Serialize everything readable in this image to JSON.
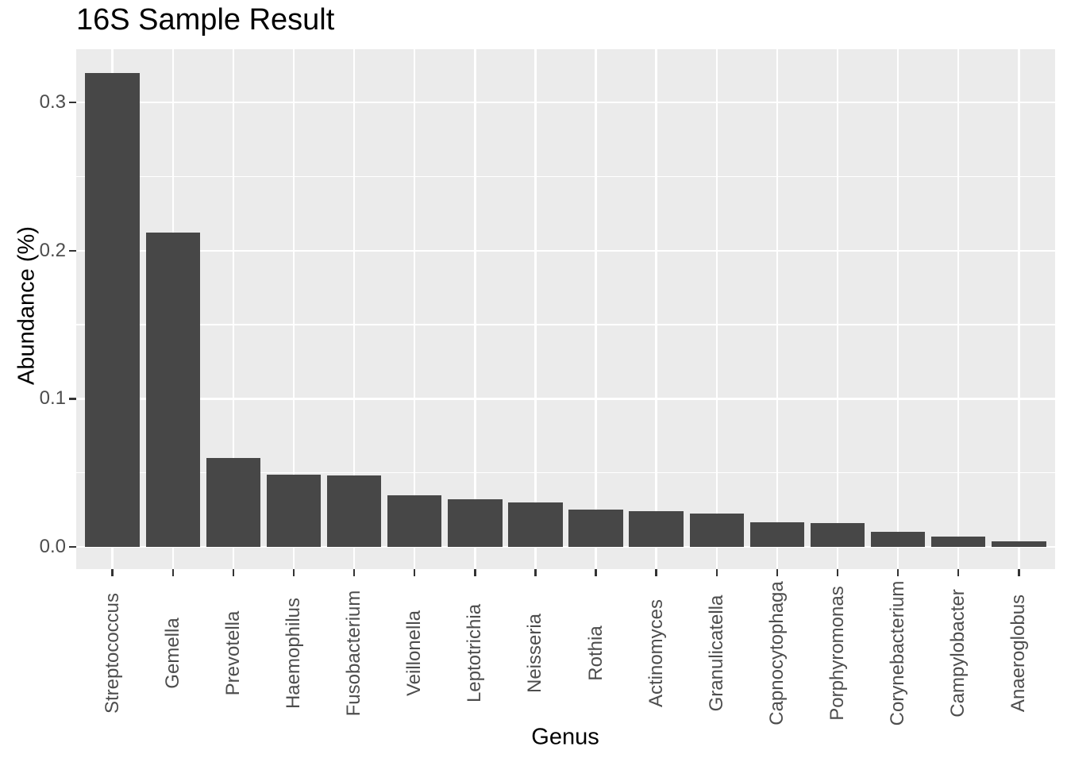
{
  "chart": {
    "title": "16S Sample Result",
    "x_axis_title": "Genus",
    "y_axis_title": "Abundance (%)"
  },
  "chart_data": {
    "type": "bar",
    "title": "16S Sample Result",
    "xlabel": "Genus",
    "ylabel": "Abundance (%)",
    "categories": [
      "Streptococcus",
      "Gemella",
      "Prevotella",
      "Haemophilus",
      "Fusobacterium",
      "Veillonella",
      "Leptotrichia",
      "Neisseria",
      "Rothia",
      "Actinomyces",
      "Granulicatella",
      "Capnocytophaga",
      "Porphyromonas",
      "Corynebacterium",
      "Campylobacter",
      "Anaeroglobus"
    ],
    "values": [
      0.32,
      0.212,
      0.06,
      0.0486,
      0.048,
      0.0348,
      0.0321,
      0.0302,
      0.0253,
      0.0239,
      0.0227,
      0.0166,
      0.0161,
      0.0102,
      0.0071,
      0.0039
    ],
    "y_ticks": [
      0.0,
      0.1,
      0.2,
      0.3
    ],
    "y_tick_labels": [
      "0.0",
      "0.1",
      "0.2",
      "0.3"
    ],
    "y_minor_ticks": [
      0.05,
      0.15,
      0.25
    ],
    "ylim": [
      -0.015,
      0.336
    ],
    "grid": true,
    "legend": false,
    "style": "ggplot-grey",
    "colors": {
      "bar_fill": "#474747",
      "panel_background": "#EBEBEB",
      "gridline": "#FFFFFF",
      "tick_mark": "#333333",
      "tick_label": "#4D4D4D",
      "title_text": "#000000",
      "page_background": "#FFFFFF"
    }
  }
}
